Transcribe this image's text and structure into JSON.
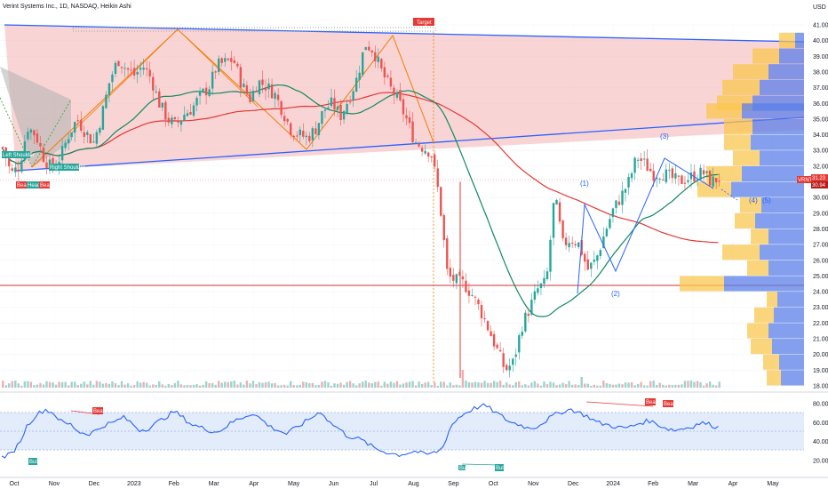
{
  "header": {
    "symbol_title": "Verint Systems Inc., 1D, NASDAQ, Heikin Ashi",
    "currency": "USD"
  },
  "labels": {
    "target": "Target",
    "left_shoulder": "Left Shoulder",
    "right_shoulder": "Right Shoulder",
    "bear": "Bear",
    "head": "Head",
    "bear2": "Bear",
    "rsi_bear_1": "Bear",
    "rsi_bear_2": "Bear",
    "rsi_bear_3": "Bear",
    "rsi_bull_1": "Bull",
    "rsi_bull_2": "Bull",
    "rsi_bull_3": "Bull",
    "ticker_tag": "VRNT",
    "price_tag_1": "31.23",
    "price_tag_2": "30.94"
  },
  "colors": {
    "triangle_fill": "#f7c6c7",
    "triangle_line": "#2962ff",
    "candle_up": "#26a69a",
    "candle_down": "#ef5350",
    "ma_fast": "#0e8a5f",
    "ma_slow": "#e53935",
    "zigzag": "#f57c00",
    "rsi_line": "#2962ff",
    "rsi_band": "#e3ecfb",
    "support_line": "#d32f2f",
    "vp_orange": "#f9c74f",
    "vp_blue": "#5b7fe8"
  },
  "chart_data": {
    "type": "candlestick",
    "price_axis": {
      "ticks": [
        "41.00",
        "40.00",
        "39.00",
        "38.00",
        "37.00",
        "36.00",
        "35.00",
        "34.00",
        "33.00",
        "32.00",
        "31.00",
        "30.00",
        "29.00",
        "28.00",
        "27.00",
        "26.00",
        "25.00",
        "24.00",
        "23.00",
        "22.00",
        "21.00",
        "20.00",
        "19.00",
        "18.00"
      ],
      "ylim": [
        17.6,
        41.6
      ]
    },
    "time_axis": {
      "ticks": [
        "Oct",
        "Nov",
        "Dec",
        "2023",
        "Feb",
        "Mar",
        "Apr",
        "May",
        "Jun",
        "Jul",
        "Aug",
        "Sep",
        "Oct",
        "Nov",
        "Dec",
        "2024",
        "Feb",
        "Mar",
        "Apr",
        "May"
      ]
    },
    "rsi_axis": {
      "ticks": [
        "80.00",
        "60.00",
        "40.00",
        "20.00"
      ],
      "ylim": [
        12,
        88
      ]
    },
    "wave_labels": [
      "(1)",
      "(2)",
      "(3)",
      "(4)",
      "(5)"
    ],
    "price_series": [
      33.2,
      31.5,
      32.0,
      34.5,
      34.0,
      32.5,
      31.8,
      32.6,
      34.0,
      35.0,
      34.2,
      33.5,
      35.2,
      37.5,
      38.8,
      38.2,
      37.8,
      38.4,
      37.6,
      36.0,
      35.0,
      34.6,
      35.3,
      35.7,
      36.5,
      37.0,
      38.4,
      38.6,
      38.8,
      37.2,
      36.3,
      37.4,
      37.1,
      36.6,
      35.5,
      34.3,
      34.0,
      33.8,
      34.4,
      35.6,
      36.0,
      35.2,
      36.3,
      37.6,
      39.8,
      39.4,
      38.0,
      37.0,
      36.2,
      35.0,
      33.6,
      33.2,
      32.9,
      30.0,
      25.0,
      24.7,
      24.5,
      23.8,
      22.8,
      21.6,
      20.3,
      19.0,
      19.5,
      21.8,
      23.0,
      24.2,
      24.6,
      30.2,
      27.0,
      27.4,
      27.0,
      25.4,
      26.0,
      27.6,
      29.1,
      30.0,
      31.0,
      32.6,
      32.1,
      31.5,
      31.6,
      31.3,
      31.0,
      31.2,
      31.4,
      31.6,
      31.0,
      31.23
    ],
    "rsi_series": [
      24,
      26,
      38,
      58,
      68,
      74,
      70,
      60,
      58,
      50,
      48,
      52,
      58,
      60,
      66,
      60,
      52,
      54,
      60,
      66,
      72,
      65,
      58,
      55,
      52,
      50,
      56,
      62,
      66,
      70,
      64,
      56,
      52,
      48,
      54,
      60,
      66,
      72,
      60,
      54,
      46,
      44,
      40,
      34,
      30,
      28,
      26,
      28,
      30,
      26,
      28,
      32,
      56,
      66,
      72,
      76,
      78,
      72,
      66,
      60,
      58,
      54,
      56,
      62,
      68,
      72,
      74,
      70,
      66,
      60,
      58,
      56,
      54,
      56,
      60,
      62,
      58,
      54,
      52,
      54,
      56,
      60,
      58,
      55
    ]
  }
}
